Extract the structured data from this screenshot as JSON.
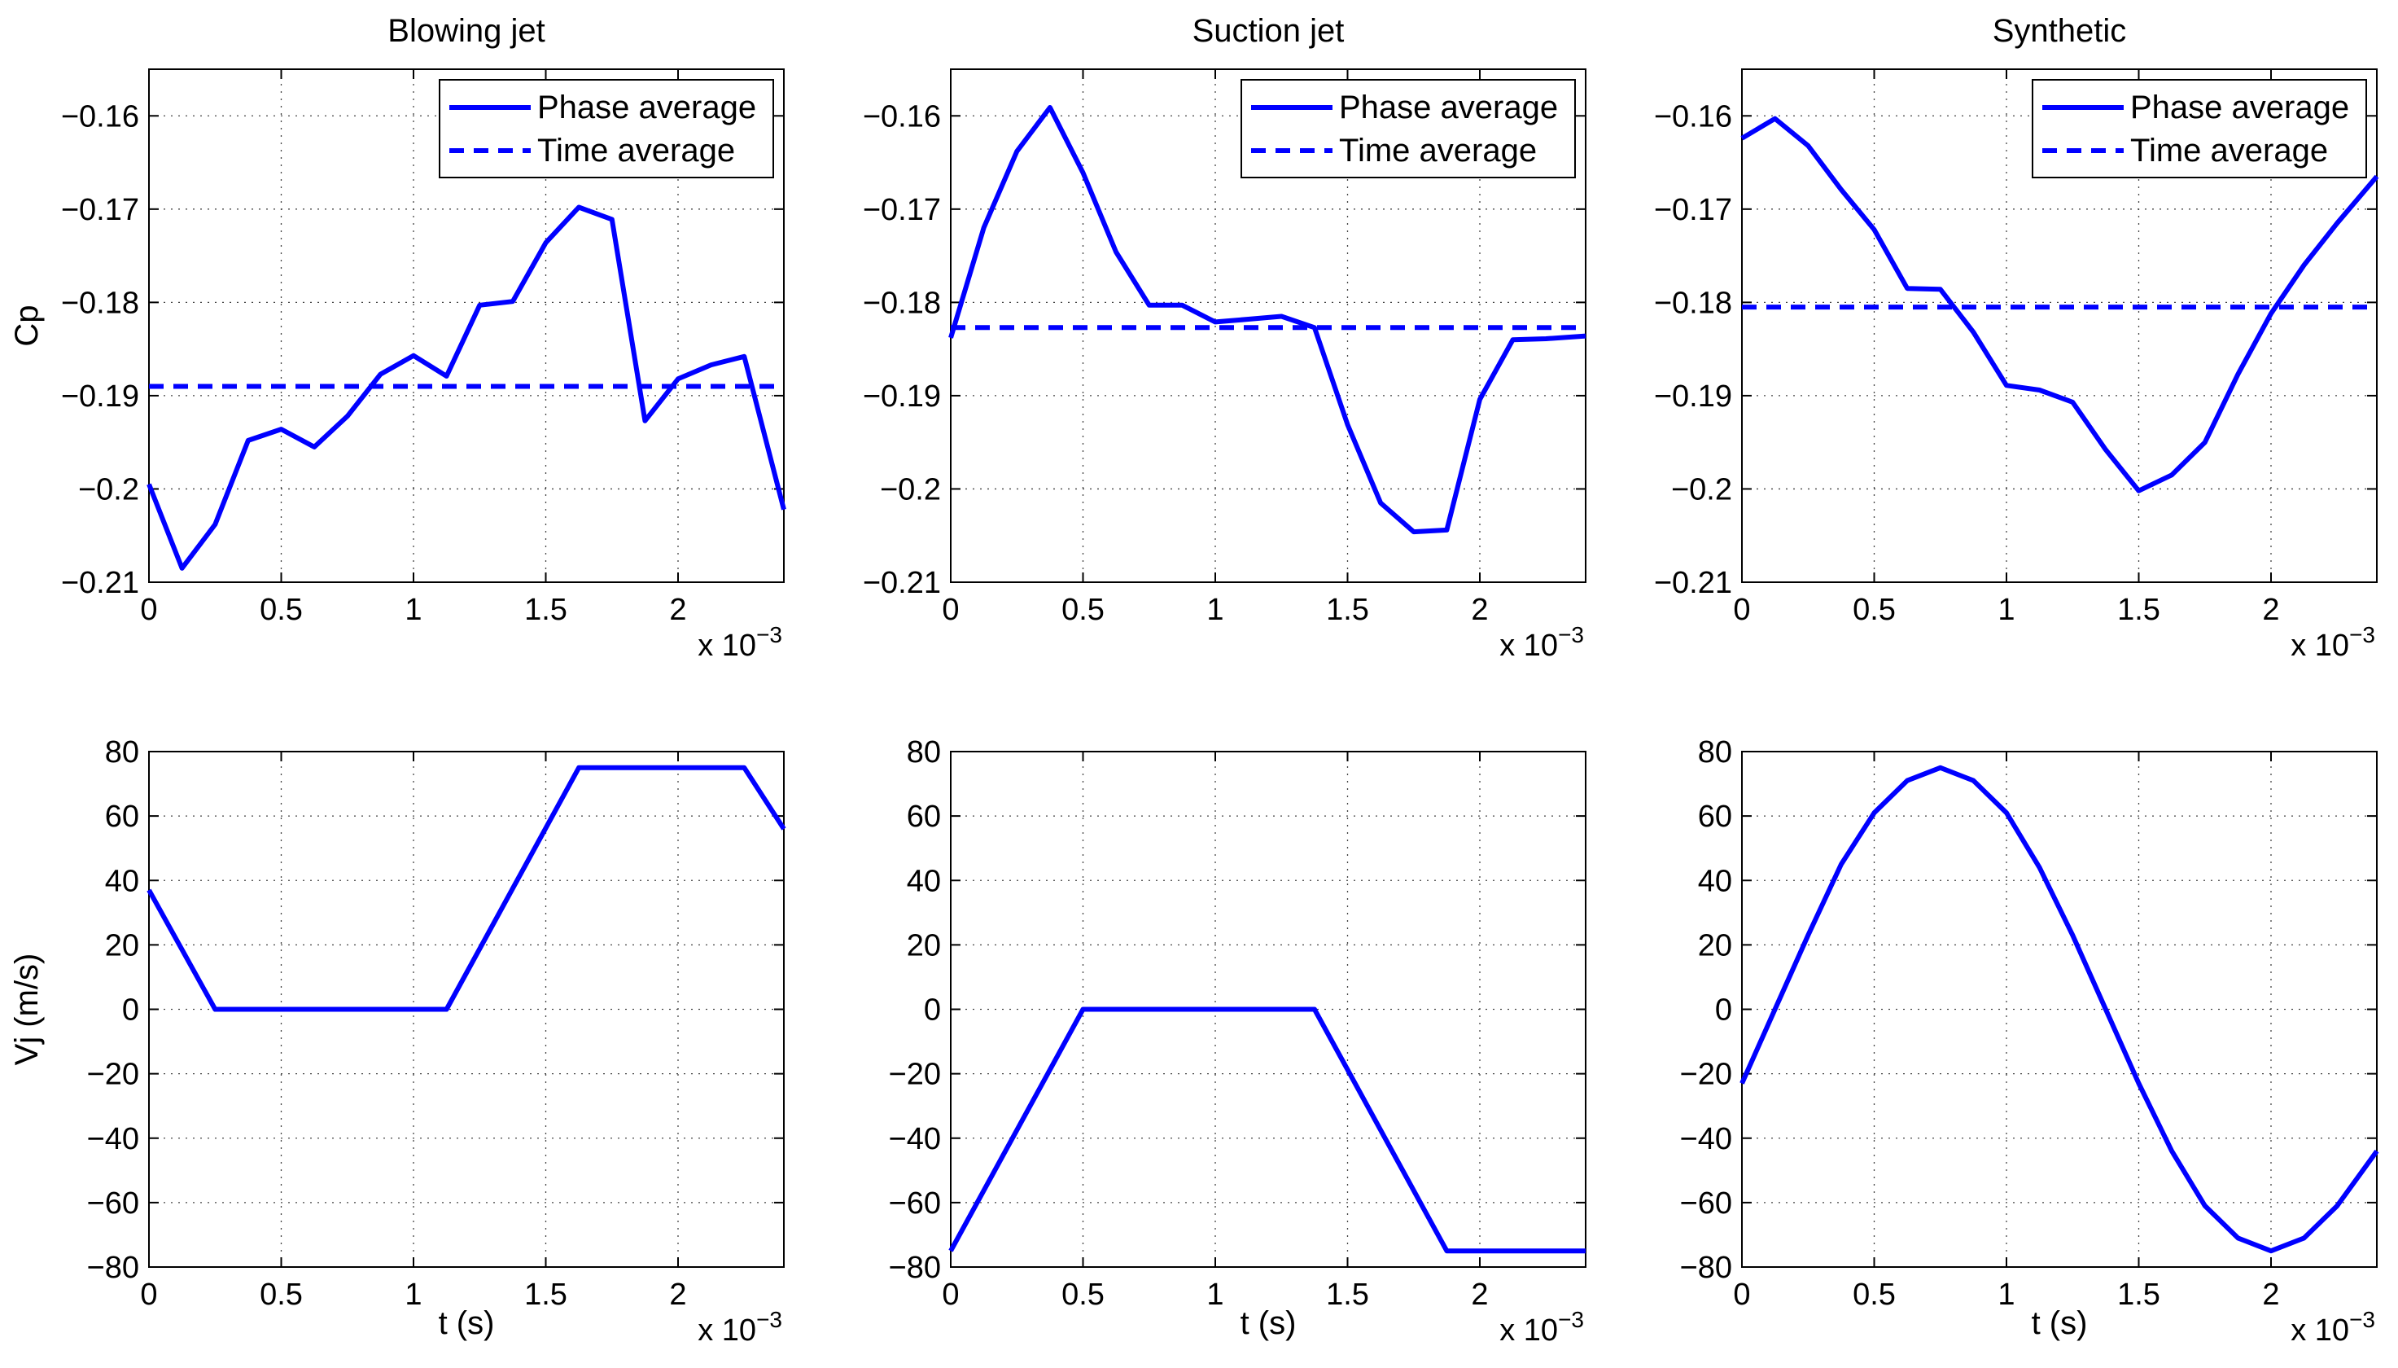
{
  "figure": {
    "xlabel_shared": "t (s)"
  },
  "chart_data": [
    {
      "id": "cp-blowing",
      "type": "line",
      "title": "Blowing jet",
      "ylabel": "Cp",
      "xlabel": "",
      "x_exponent_label": "x 10",
      "x_exponent_power": "−3",
      "xlim": [
        0,
        2.4
      ],
      "ylim": [
        -0.21,
        -0.155
      ],
      "xticks": [
        0,
        0.5,
        1,
        1.5,
        2
      ],
      "xtick_labels": [
        "0",
        "0.5",
        "1",
        "1.5",
        "2"
      ],
      "yticks": [
        -0.21,
        -0.2,
        -0.19,
        -0.18,
        -0.17,
        -0.16
      ],
      "ytick_labels": [
        "−0.21",
        "−0.2",
        "−0.19",
        "−0.18",
        "−0.17",
        "−0.16"
      ],
      "grid": true,
      "legend": {
        "placement": "top-right",
        "entries": [
          "Phase average",
          "Time average"
        ]
      },
      "series": [
        {
          "name": "Phase average",
          "style": "solid",
          "color": "#0000ff",
          "x": [
            0,
            0.125,
            0.25,
            0.375,
            0.5,
            0.625,
            0.75,
            0.875,
            1.0,
            1.125,
            1.25,
            1.375,
            1.5,
            1.625,
            1.75,
            1.875,
            2.0,
            2.125,
            2.25,
            2.4
          ],
          "y": [
            -0.1995,
            -0.2085,
            -0.2038,
            -0.1948,
            -0.1936,
            -0.1955,
            -0.1922,
            -0.1877,
            -0.1857,
            -0.1879,
            -0.1803,
            -0.1799,
            -0.1736,
            -0.1698,
            -0.1711,
            -0.1927,
            -0.1882,
            -0.1867,
            -0.1858,
            -0.2022
          ]
        },
        {
          "name": "Time average",
          "style": "dashed",
          "color": "#0000ff",
          "x": [
            0,
            2.4
          ],
          "y": [
            -0.189,
            -0.189
          ]
        }
      ]
    },
    {
      "id": "cp-suction",
      "type": "line",
      "title": "Suction jet",
      "ylabel": "",
      "xlabel": "",
      "x_exponent_label": "x 10",
      "x_exponent_power": "−3",
      "xlim": [
        0,
        2.4
      ],
      "ylim": [
        -0.21,
        -0.155
      ],
      "xticks": [
        0,
        0.5,
        1,
        1.5,
        2
      ],
      "xtick_labels": [
        "0",
        "0.5",
        "1",
        "1.5",
        "2"
      ],
      "yticks": [
        -0.21,
        -0.2,
        -0.19,
        -0.18,
        -0.17,
        -0.16
      ],
      "ytick_labels": [
        "−0.21",
        "−0.2",
        "−0.19",
        "−0.18",
        "−0.17",
        "−0.16"
      ],
      "grid": true,
      "legend": {
        "placement": "top-right",
        "entries": [
          "Phase average",
          "Time average"
        ]
      },
      "series": [
        {
          "name": "Phase average",
          "style": "solid",
          "color": "#0000ff",
          "x": [
            0,
            0.125,
            0.25,
            0.375,
            0.5,
            0.625,
            0.75,
            0.875,
            1.0,
            1.125,
            1.25,
            1.375,
            1.5,
            1.625,
            1.75,
            1.875,
            2.0,
            2.125,
            2.25,
            2.4
          ],
          "y": [
            -0.1838,
            -0.172,
            -0.1638,
            -0.1591,
            -0.1661,
            -0.1746,
            -0.1803,
            -0.1803,
            -0.1821,
            -0.1818,
            -0.1815,
            -0.1827,
            -0.1931,
            -0.2015,
            -0.2046,
            -0.2044,
            -0.1904,
            -0.184,
            -0.1839,
            -0.1836
          ]
        },
        {
          "name": "Time average",
          "style": "dashed",
          "color": "#0000ff",
          "x": [
            0,
            2.4
          ],
          "y": [
            -0.1827,
            -0.1827
          ]
        }
      ]
    },
    {
      "id": "cp-synthetic",
      "type": "line",
      "title": "Synthetic",
      "ylabel": "",
      "xlabel": "",
      "x_exponent_label": "x 10",
      "x_exponent_power": "−3",
      "xlim": [
        0,
        2.4
      ],
      "ylim": [
        -0.21,
        -0.155
      ],
      "xticks": [
        0,
        0.5,
        1,
        1.5,
        2
      ],
      "xtick_labels": [
        "0",
        "0.5",
        "1",
        "1.5",
        "2"
      ],
      "yticks": [
        -0.21,
        -0.2,
        -0.19,
        -0.18,
        -0.17,
        -0.16
      ],
      "ytick_labels": [
        "−0.21",
        "−0.2",
        "−0.19",
        "−0.18",
        "−0.17",
        "−0.16"
      ],
      "grid": true,
      "legend": {
        "placement": "top-right",
        "entries": [
          "Phase average",
          "Time average"
        ]
      },
      "series": [
        {
          "name": "Phase average",
          "style": "solid",
          "color": "#0000ff",
          "x": [
            0,
            0.125,
            0.25,
            0.375,
            0.5,
            0.625,
            0.75,
            0.875,
            1.0,
            1.125,
            1.25,
            1.375,
            1.5,
            1.625,
            1.75,
            1.875,
            2.0,
            2.125,
            2.25,
            2.4
          ],
          "y": [
            -0.1624,
            -0.1603,
            -0.1632,
            -0.1679,
            -0.1722,
            -0.1785,
            -0.1786,
            -0.1832,
            -0.1889,
            -0.1894,
            -0.1907,
            -0.1958,
            -0.2002,
            -0.1985,
            -0.195,
            -0.1877,
            -0.1812,
            -0.176,
            -0.1715,
            -0.1665
          ]
        },
        {
          "name": "Time average",
          "style": "dashed",
          "color": "#0000ff",
          "x": [
            0,
            2.4
          ],
          "y": [
            -0.1805,
            -0.1805
          ]
        }
      ]
    },
    {
      "id": "vj-blowing",
      "type": "line",
      "title": "",
      "ylabel": "Vj (m/s)",
      "xlabel": "t (s)",
      "x_exponent_label": "x 10",
      "x_exponent_power": "−3",
      "xlim": [
        0,
        2.4
      ],
      "ylim": [
        -80,
        80
      ],
      "xticks": [
        0,
        0.5,
        1,
        1.5,
        2
      ],
      "xtick_labels": [
        "0",
        "0.5",
        "1",
        "1.5",
        "2"
      ],
      "yticks": [
        -80,
        -60,
        -40,
        -20,
        0,
        20,
        40,
        60,
        80
      ],
      "ytick_labels": [
        "−80",
        "−60",
        "−40",
        "−20",
        "0",
        "20",
        "40",
        "60",
        "80"
      ],
      "grid": true,
      "series": [
        {
          "name": "Vj",
          "style": "solid",
          "color": "#0000ff",
          "x": [
            0,
            0.25,
            1.125,
            1.625,
            2.25,
            2.4
          ],
          "y": [
            37,
            0,
            0,
            75,
            75,
            56
          ]
        }
      ]
    },
    {
      "id": "vj-suction",
      "type": "line",
      "title": "",
      "ylabel": "",
      "xlabel": "t (s)",
      "x_exponent_label": "x 10",
      "x_exponent_power": "−3",
      "xlim": [
        0,
        2.4
      ],
      "ylim": [
        -80,
        80
      ],
      "xticks": [
        0,
        0.5,
        1,
        1.5,
        2
      ],
      "xtick_labels": [
        "0",
        "0.5",
        "1",
        "1.5",
        "2"
      ],
      "yticks": [
        -80,
        -60,
        -40,
        -20,
        0,
        20,
        40,
        60,
        80
      ],
      "ytick_labels": [
        "−80",
        "−60",
        "−40",
        "−20",
        "0",
        "20",
        "40",
        "60",
        "80"
      ],
      "grid": true,
      "series": [
        {
          "name": "Vj",
          "style": "solid",
          "color": "#0000ff",
          "x": [
            0,
            0.5,
            1.375,
            1.875,
            2.4
          ],
          "y": [
            -75,
            0,
            0,
            -75,
            -75
          ]
        }
      ]
    },
    {
      "id": "vj-synthetic",
      "type": "line",
      "title": "",
      "ylabel": "",
      "xlabel": "t (s)",
      "x_exponent_label": "x 10",
      "x_exponent_power": "−3",
      "xlim": [
        0,
        2.4
      ],
      "ylim": [
        -80,
        80
      ],
      "xticks": [
        0,
        0.5,
        1,
        1.5,
        2
      ],
      "xtick_labels": [
        "0",
        "0.5",
        "1",
        "1.5",
        "2"
      ],
      "yticks": [
        -80,
        -60,
        -40,
        -20,
        0,
        20,
        40,
        60,
        80
      ],
      "ytick_labels": [
        "−80",
        "−60",
        "−40",
        "−20",
        "0",
        "20",
        "40",
        "60",
        "80"
      ],
      "grid": true,
      "series": [
        {
          "name": "Vj",
          "style": "solid",
          "color": "#0000ff",
          "x": [
            0,
            0.125,
            0.25,
            0.375,
            0.5,
            0.625,
            0.75,
            0.875,
            1.0,
            1.125,
            1.25,
            1.375,
            1.5,
            1.625,
            1.75,
            1.875,
            2.0,
            2.125,
            2.25,
            2.4
          ],
          "y": [
            -23,
            0,
            23,
            45,
            61,
            71,
            75,
            71,
            61,
            44,
            23,
            0,
            -23,
            -44,
            -61,
            -71,
            -75,
            -71,
            -61,
            -44
          ]
        }
      ]
    }
  ]
}
